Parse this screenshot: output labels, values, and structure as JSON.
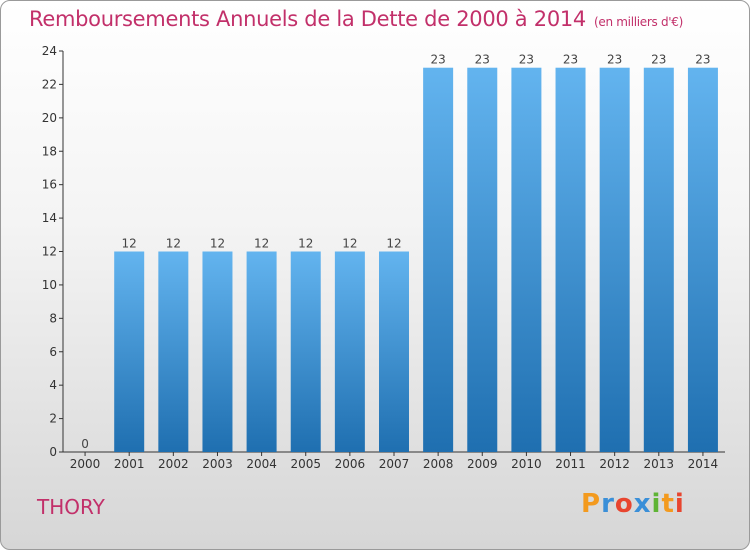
{
  "title": "Remboursements Annuels de la Dette de 2000 à 2014",
  "unit": "(en milliers d'€)",
  "commune": "THORY",
  "logo_text": "Proxiti",
  "colors": {
    "bar_light": "#62b3ee",
    "bar_dark": "#1f6fb0",
    "title": "#c2306a"
  },
  "chart_data": {
    "type": "bar",
    "title": "Remboursements Annuels de la Dette de 2000 à 2014",
    "ylabel": "",
    "xlabel": "",
    "categories": [
      "2000",
      "2001",
      "2002",
      "2003",
      "2004",
      "2005",
      "2006",
      "2007",
      "2008",
      "2009",
      "2010",
      "2011",
      "2012",
      "2013",
      "2014"
    ],
    "values": [
      0,
      12,
      12,
      12,
      12,
      12,
      12,
      12,
      23,
      23,
      23,
      23,
      23,
      23,
      23
    ],
    "ylim": [
      0,
      24
    ],
    "yticks": [
      0,
      2,
      4,
      6,
      8,
      10,
      12,
      14,
      16,
      18,
      20,
      22,
      24
    ],
    "grid": false,
    "data_labels": true
  }
}
